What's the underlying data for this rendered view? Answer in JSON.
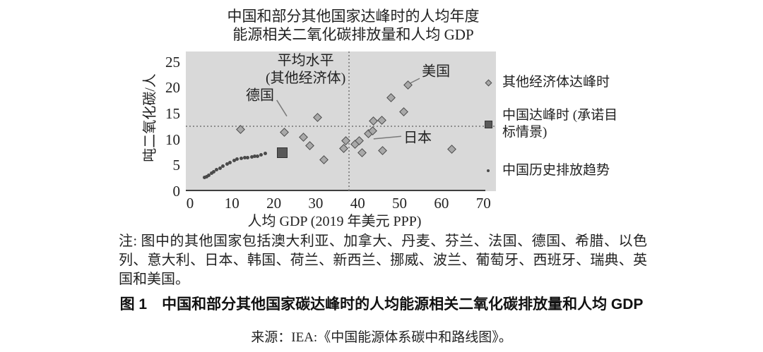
{
  "figure": {
    "title": "中国和部分其他国家达峰时的人均年度\n能源相关二氧化碳排放量和人均 GDP",
    "note": "注: 图中的其他国家包括澳大利亚、加拿大、丹麦、芬兰、法国、德国、希腊、以色列、意大利、日本、韩国、荷兰、新西兰、挪威、波兰、葡萄牙、西班牙、瑞典、英国和美国。",
    "caption": "图 1　中国和部分其他国家碳达峰时的人均能源相关二氧化碳排放量和人均 GDP",
    "source": "来源：IEA:《中国能源体系碳中和路线图》。"
  },
  "chart_data": {
    "type": "scatter",
    "title": "中国和部分其他国家达峰时的人均年度能源相关二氧化碳排放量和人均 GDP",
    "xlabel": "人均 GDP (2019 年美元 PPP)",
    "ylabel": "吨二氧化碳/人",
    "xlim": [
      -1,
      73
    ],
    "ylim": [
      0,
      27
    ],
    "x_ticks": [
      0,
      10,
      20,
      30,
      40,
      50,
      60,
      70
    ],
    "y_ticks": [
      0,
      5,
      10,
      15,
      20,
      25
    ],
    "grid": false,
    "plot_bg_color": "#d9d9d9",
    "legend_position": "right",
    "series": [
      {
        "name": "其他经济体达峰时",
        "marker": "diamond",
        "fill_color": "#a9a9a9",
        "edge_color": "#4d4d4d",
        "points": [
          [
            12.0,
            11.9
          ],
          [
            22.5,
            11.4
          ],
          [
            27.0,
            10.4
          ],
          [
            28.6,
            8.8
          ],
          [
            30.5,
            14.2
          ],
          [
            32.0,
            6.1
          ],
          [
            36.7,
            8.2
          ],
          [
            37.1,
            9.7
          ],
          [
            39.4,
            9.1
          ],
          [
            40.4,
            9.8
          ],
          [
            41.1,
            7.5
          ],
          [
            42.5,
            11.1
          ],
          [
            43.6,
            11.7
          ],
          [
            43.7,
            13.6
          ],
          [
            45.8,
            13.7
          ],
          [
            45.9,
            7.9
          ],
          [
            48.0,
            18.1
          ],
          [
            51.0,
            15.4
          ],
          [
            52.0,
            20.5
          ],
          [
            62.4,
            8.1
          ]
        ]
      },
      {
        "name": "中国达峰时 (承诺目标情景)",
        "marker": "square",
        "fill_color": "#595959",
        "edge_color": "#333333",
        "points": [
          [
            22.0,
            7.4
          ]
        ]
      },
      {
        "name": "中国历史排放趋势",
        "marker": "dot",
        "fill_color": "#4a4a4a",
        "points": [
          [
            3.4,
            2.6
          ],
          [
            3.9,
            2.8
          ],
          [
            4.5,
            3.1
          ],
          [
            5.1,
            3.5
          ],
          [
            5.6,
            3.8
          ],
          [
            6.3,
            4.1
          ],
          [
            7.1,
            4.5
          ],
          [
            7.9,
            4.8
          ],
          [
            8.8,
            5.2
          ],
          [
            9.6,
            5.5
          ],
          [
            10.5,
            5.9
          ],
          [
            11.3,
            6.2
          ],
          [
            12.2,
            6.4
          ],
          [
            13.0,
            6.5
          ],
          [
            13.8,
            6.5
          ],
          [
            14.7,
            6.6
          ],
          [
            15.4,
            6.7
          ],
          [
            16.1,
            6.8
          ],
          [
            16.9,
            7.0
          ],
          [
            18.0,
            7.3
          ]
        ]
      }
    ],
    "reference_lines": [
      {
        "orientation": "horizontal",
        "value": 12.5,
        "meaning": "平均水平 (其他经济体)",
        "color": "#8d8d8d",
        "style": "dotted"
      },
      {
        "orientation": "vertical",
        "value": 38,
        "color": "#8d8d8d",
        "style": "dotted"
      }
    ],
    "annotations": [
      {
        "text": "平均水平\n(其他经济体)",
        "x": 27.6,
        "y": 23.5
      },
      {
        "text": "德国",
        "x": 16.7,
        "y": 18.4,
        "leader": [
          [
            20.7,
            17.6
          ],
          [
            23.1,
            14.5
          ]
        ]
      },
      {
        "text": "美国",
        "x": 58.7,
        "y": 23.0,
        "leader": [
          [
            54.8,
            21.8
          ],
          [
            52.6,
            20.9
          ]
        ]
      },
      {
        "text": "日本",
        "x": 54.3,
        "y": 10.2,
        "leader": [
          [
            50.4,
            10.6
          ],
          [
            43.8,
            10.1
          ]
        ]
      }
    ],
    "legend_items": [
      {
        "label": "其他经济体达峰时",
        "marker": "diamond"
      },
      {
        "label": "中国达峰时 (承诺目标情景)",
        "marker": "square"
      },
      {
        "label": "中国历史排放趋势",
        "marker": "dot"
      }
    ]
  }
}
